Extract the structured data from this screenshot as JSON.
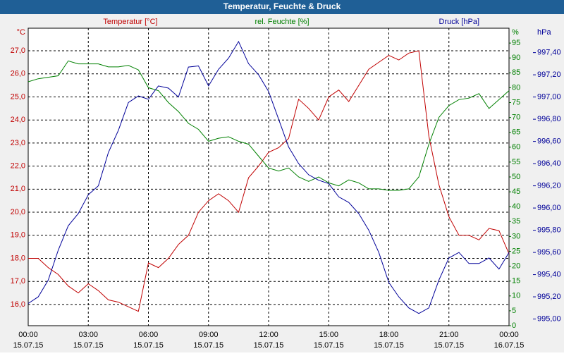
{
  "chart_data": {
    "type": "line",
    "title": "Temperatur, Feuchte & Druck",
    "ylabel": "°C",
    "y2label": "%",
    "y3label": "hPa",
    "x": [
      0,
      0.5,
      1,
      1.5,
      2,
      2.5,
      3,
      3.5,
      4,
      4.5,
      5,
      5.5,
      6,
      6.5,
      7,
      7.5,
      8,
      8.5,
      9,
      9.5,
      10,
      10.5,
      11,
      11.5,
      12,
      12.5,
      13,
      13.5,
      14,
      14.5,
      15,
      15.5,
      16,
      16.5,
      17,
      17.5,
      18,
      18.5,
      19,
      19.5,
      20,
      20.5,
      21,
      21.5,
      22,
      22.5,
      23,
      23.5,
      24
    ],
    "xlim": [
      0,
      24
    ],
    "xticks": [
      {
        "value": 0,
        "label": "00:00",
        "date": "15.07.15"
      },
      {
        "value": 3,
        "label": "03:00",
        "date": "15.07.15"
      },
      {
        "value": 6,
        "label": "06:00",
        "date": "15.07.15"
      },
      {
        "value": 9,
        "label": "09:00",
        "date": "15.07.15"
      },
      {
        "value": 12,
        "label": "12:00",
        "date": "15.07.15"
      },
      {
        "value": 15,
        "label": "15:00",
        "date": "15.07.15"
      },
      {
        "value": 18,
        "label": "18:00",
        "date": "15.07.15"
      },
      {
        "value": 21,
        "label": "21:00",
        "date": "15.07.15"
      },
      {
        "value": 24,
        "label": "00:00",
        "date": "16.07.15"
      }
    ],
    "ylim": [
      15.08,
      27.98
    ],
    "yticks": [
      {
        "value": 16,
        "label": "16,0"
      },
      {
        "value": 17,
        "label": "17,0"
      },
      {
        "value": 18,
        "label": "18,0"
      },
      {
        "value": 19,
        "label": "19,0"
      },
      {
        "value": 20,
        "label": "20,0"
      },
      {
        "value": 21,
        "label": "21,0"
      },
      {
        "value": 22,
        "label": "22,0"
      },
      {
        "value": 23,
        "label": "23,0"
      },
      {
        "value": 24,
        "label": "24,0"
      },
      {
        "value": 25,
        "label": "25,0"
      },
      {
        "value": 26,
        "label": "26,0"
      },
      {
        "value": 27,
        "label": "27,0"
      }
    ],
    "y2lim": [
      0,
      100
    ],
    "y2ticks": [
      0,
      5,
      10,
      15,
      20,
      25,
      30,
      35,
      40,
      45,
      50,
      55,
      60,
      65,
      70,
      75,
      80,
      85,
      90,
      95
    ],
    "y3lim": [
      994.94,
      997.62
    ],
    "y3ticks": [
      {
        "value": 995,
        "label": "995,00"
      },
      {
        "value": 995.2,
        "label": "995,20"
      },
      {
        "value": 995.4,
        "label": "995,40"
      },
      {
        "value": 995.6,
        "label": "995,60"
      },
      {
        "value": 995.8,
        "label": "995,80"
      },
      {
        "value": 996,
        "label": "996,00"
      },
      {
        "value": 996.2,
        "label": "996,20"
      },
      {
        "value": 996.4,
        "label": "996,40"
      },
      {
        "value": 996.6,
        "label": "996,60"
      },
      {
        "value": 996.8,
        "label": "996,80"
      },
      {
        "value": 997,
        "label": "997,00"
      },
      {
        "value": 997.2,
        "label": "997,20"
      },
      {
        "value": 997.4,
        "label": "997,40"
      }
    ],
    "grid": true,
    "series": [
      {
        "name": "Temperatur [°C]",
        "color": "#c00000",
        "axis": "y",
        "values": [
          18.0,
          18.0,
          17.6,
          17.3,
          16.8,
          16.5,
          16.9,
          16.6,
          16.2,
          16.1,
          15.9,
          15.7,
          17.8,
          17.6,
          18.0,
          18.6,
          19.0,
          20.0,
          20.5,
          20.8,
          20.5,
          20.0,
          21.5,
          22.0,
          22.6,
          22.8,
          23.2,
          24.9,
          24.5,
          24.0,
          25.0,
          25.3,
          24.8,
          25.5,
          26.2,
          26.5,
          26.8,
          26.6,
          26.9,
          27.0,
          23.3,
          21.2,
          19.8,
          19.0,
          19.0,
          18.8,
          19.3,
          19.2,
          18.2
        ]
      },
      {
        "name": "rel. Feuchte [%]",
        "color": "#008000",
        "axis": "y2",
        "values": [
          82,
          83,
          83.5,
          84,
          89,
          88,
          88,
          88,
          87,
          87,
          87.5,
          86,
          80,
          79,
          75,
          72,
          68,
          66,
          62,
          63,
          63.5,
          62,
          61,
          57,
          53,
          52,
          53,
          50,
          48.5,
          50,
          48,
          47,
          49,
          48,
          46,
          46,
          45.5,
          45.5,
          46,
          50,
          61,
          70,
          74,
          76,
          76.5,
          78,
          73,
          76,
          79
        ]
      },
      {
        "name": "Druck [hPa]",
        "color": "#000099",
        "axis": "y3",
        "values": [
          995.14,
          995.2,
          995.35,
          995.62,
          995.84,
          995.95,
          996.12,
          996.2,
          996.5,
          996.7,
          996.95,
          997.01,
          996.98,
          997.1,
          997.08,
          997.0,
          997.27,
          997.28,
          997.1,
          997.25,
          997.35,
          997.5,
          997.3,
          997.2,
          997.05,
          996.8,
          996.55,
          996.4,
          996.3,
          996.25,
          996.22,
          996.1,
          996.05,
          995.95,
          995.8,
          995.6,
          995.33,
          995.2,
          995.1,
          995.05,
          995.1,
          995.35,
          995.55,
          995.6,
          995.5,
          995.5,
          995.55,
          995.45,
          995.6
        ]
      }
    ]
  }
}
